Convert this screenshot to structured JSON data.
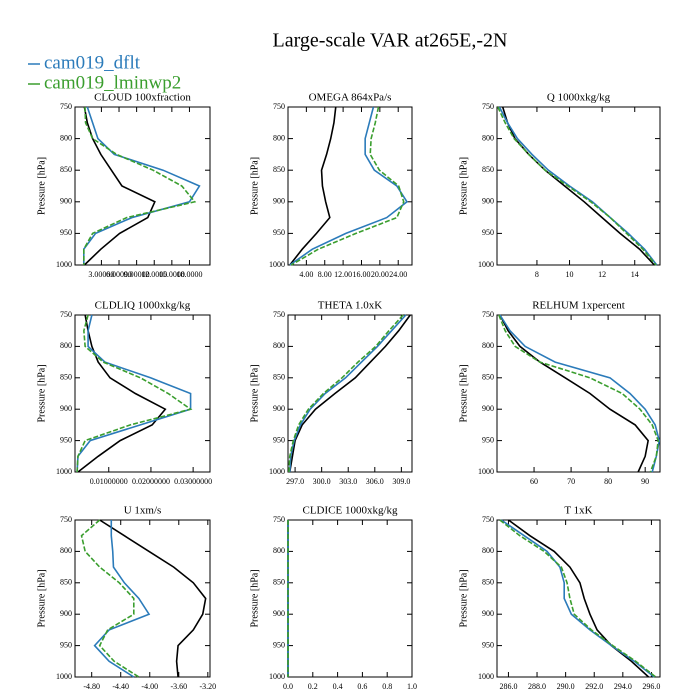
{
  "title": "Large-scale VAR at265E,-2N",
  "legend": [
    {
      "name": "cam019_dflt",
      "color": "#2b7bba"
    },
    {
      "name": "cam019_lminwp2",
      "color": "#3a9e2e"
    }
  ],
  "chart_data": [
    {
      "type": "line",
      "title": "CLOUD  100xfraction",
      "ylabel": "Pressure [hPa]",
      "y": [
        750,
        775,
        800,
        825,
        850,
        875,
        900,
        925,
        950,
        975,
        1000
      ],
      "ylim": [
        1000,
        750
      ],
      "yticks": [
        750,
        800,
        850,
        900,
        950,
        1000
      ],
      "xlim": [
        -1.5,
        21.5
      ],
      "xticks": [
        {
          "value": 3,
          "label": "3.00000"
        },
        {
          "value": 6,
          "label": "6.00000"
        },
        {
          "value": 9,
          "label": "9.00000"
        },
        {
          "value": 12,
          "label": "12.0000"
        },
        {
          "value": 15,
          "label": "15.0000"
        },
        {
          "value": 18,
          "label": "18.0000"
        }
      ],
      "series": [
        {
          "color": "#000000",
          "values": [
            0.1,
            0.6,
            1.5,
            2.9,
            4.7,
            6.5,
            12.1,
            10.9,
            6.1,
            2.9,
            0.1
          ]
        },
        {
          "color": "#2b7bba",
          "values": [
            0.6,
            1.5,
            2.4,
            5.2,
            13.5,
            19.7,
            18,
            8.2,
            2,
            0,
            0
          ]
        },
        {
          "color": "#3a9e2e",
          "dashed": true,
          "values": [
            0.2,
            0.3,
            1.5,
            5.6,
            11.8,
            16.7,
            18.9,
            7.3,
            1.5,
            0,
            0
          ]
        }
      ]
    },
    {
      "type": "line",
      "title": "OMEGA  864xPa/s",
      "ylabel": "Pressure [hPa]",
      "y": [
        750,
        775,
        800,
        825,
        850,
        875,
        900,
        925,
        950,
        975,
        1000
      ],
      "ylim": [
        1000,
        750
      ],
      "yticks": [
        750,
        800,
        850,
        900,
        950,
        1000
      ],
      "xlim": [
        0,
        27
      ],
      "xticks": [
        {
          "value": 4,
          "label": "4.00"
        },
        {
          "value": 8,
          "label": "8.00"
        },
        {
          "value": 12,
          "label": "12.00"
        },
        {
          "value": 16,
          "label": "16.00"
        },
        {
          "value": 20,
          "label": "20.00"
        },
        {
          "value": 24,
          "label": "24.00"
        }
      ],
      "series": [
        {
          "color": "#000000",
          "values": [
            10.4,
            10,
            9.3,
            8.4,
            7.3,
            7.5,
            8.2,
            9.1,
            6.2,
            3.1,
            0.4
          ]
        },
        {
          "color": "#2b7bba",
          "values": [
            18.6,
            17.7,
            16.8,
            16.8,
            18.8,
            23.7,
            25.9,
            21.5,
            12.6,
            5.3,
            0.4
          ]
        },
        {
          "color": "#3a9e2e",
          "dashed": true,
          "values": [
            19.7,
            19,
            18.1,
            17.9,
            19.9,
            24.1,
            25.2,
            23.7,
            14.8,
            6.6,
            0.7
          ]
        }
      ]
    },
    {
      "type": "line",
      "title": "Q  1000xkg/kg",
      "ylabel": "Pressure [hPa]",
      "y": [
        750,
        775,
        800,
        825,
        850,
        875,
        900,
        925,
        950,
        975,
        1000
      ],
      "ylim": [
        1000,
        750
      ],
      "yticks": [
        750,
        800,
        850,
        900,
        950,
        1000
      ],
      "xlim": [
        5.55,
        15.55
      ],
      "xticks": [
        8,
        10,
        12,
        14
      ],
      "series": [
        {
          "color": "#000000",
          "values": [
            5.9,
            6.2,
            6.65,
            7.5,
            8.5,
            9.7,
            10.9,
            12,
            13.1,
            14.3,
            15.2
          ]
        },
        {
          "color": "#2b7bba",
          "values": [
            5.7,
            6.2,
            6.8,
            7.7,
            8.7,
            10,
            11.4,
            12.5,
            13.6,
            14.6,
            15.35
          ]
        },
        {
          "color": "#3a9e2e",
          "dashed": true,
          "values": [
            5.6,
            6.05,
            6.6,
            7.5,
            8.5,
            9.9,
            11.3,
            12.5,
            13.5,
            14.5,
            15.3
          ]
        }
      ]
    },
    {
      "type": "line",
      "title": "CLDLIQ  1000xkg/kg",
      "ylabel": "Pressure [hPa]",
      "y": [
        750,
        775,
        800,
        825,
        850,
        875,
        900,
        925,
        950,
        975,
        1000
      ],
      "ylim": [
        1000,
        750
      ],
      "yticks": [
        750,
        800,
        850,
        900,
        950,
        1000
      ],
      "xlim": [
        0.002,
        0.034
      ],
      "xticks": [
        {
          "value": 0.01,
          "label": "0.01000000"
        },
        {
          "value": 0.02,
          "label": "0.02000000"
        },
        {
          "value": 0.03,
          "label": "0.03000000"
        }
      ],
      "series": [
        {
          "color": "#000000",
          "values": [
            0.0044,
            0.0051,
            0.006,
            0.0075,
            0.0103,
            0.0163,
            0.0234,
            0.0203,
            0.0127,
            0.0075,
            0.0027
          ]
        },
        {
          "color": "#2b7bba",
          "values": [
            0.006,
            0.0051,
            0.0051,
            0.0091,
            0.0199,
            0.0294,
            0.0294,
            0.0175,
            0.0056,
            0.0027,
            0.0025
          ]
        },
        {
          "color": "#3a9e2e",
          "dashed": true,
          "values": [
            0.0051,
            0.0041,
            0.0044,
            0.0087,
            0.0175,
            0.0241,
            0.0294,
            0.0151,
            0.0044,
            0.0027,
            0.0025
          ]
        }
      ]
    },
    {
      "type": "line",
      "title": "THETA  1.0xK",
      "ylabel": "Pressure [hPa]",
      "y": [
        750,
        775,
        800,
        825,
        850,
        875,
        900,
        925,
        950,
        975,
        1000
      ],
      "ylim": [
        1000,
        750
      ],
      "yticks": [
        750,
        800,
        850,
        900,
        950,
        1000
      ],
      "xlim": [
        296.2,
        310.2
      ],
      "xticks": [
        {
          "value": 297,
          "label": "297.0"
        },
        {
          "value": 300,
          "label": "300.0"
        },
        {
          "value": 303,
          "label": "303.0"
        },
        {
          "value": 306,
          "label": "306.0"
        },
        {
          "value": 309,
          "label": "309.0"
        }
      ],
      "series": [
        {
          "color": "#000000",
          "values": [
            310,
            308.7,
            307.2,
            305.5,
            303.8,
            301.5,
            299.3,
            297.8,
            297,
            296.7,
            296.4
          ]
        },
        {
          "color": "#2b7bba",
          "values": [
            309.5,
            307.9,
            306.3,
            304.5,
            302.7,
            300.4,
            298.7,
            297.6,
            296.9,
            296.5,
            296.4
          ]
        },
        {
          "color": "#3a9e2e",
          "dashed": true,
          "values": [
            309.2,
            307.6,
            306.1,
            304.1,
            302.3,
            300.2,
            298.5,
            297.4,
            296.8,
            296.4,
            296.3
          ]
        }
      ]
    },
    {
      "type": "line",
      "title": "RELHUM  1xpercent",
      "ylabel": "Pressure [hPa]",
      "y": [
        750,
        775,
        800,
        825,
        850,
        875,
        900,
        925,
        950,
        975,
        1000
      ],
      "ylim": [
        1000,
        750
      ],
      "yticks": [
        750,
        800,
        850,
        900,
        950,
        1000
      ],
      "xlim": [
        50,
        94
      ],
      "xticks": [
        60,
        70,
        80,
        90
      ],
      "series": [
        {
          "color": "#000000",
          "values": [
            50.8,
            53,
            56.2,
            61.6,
            68.4,
            75.1,
            80.5,
            87.3,
            90.8,
            90,
            88.1
          ]
        },
        {
          "color": "#2b7bba",
          "values": [
            50.8,
            53.5,
            57.6,
            65.7,
            80.5,
            85.9,
            90,
            92.7,
            93.8,
            93,
            91.9
          ]
        },
        {
          "color": "#3a9e2e",
          "dashed": true,
          "values": [
            50.5,
            52.2,
            54.9,
            61.6,
            75.1,
            83.8,
            88.6,
            91.9,
            93.5,
            93,
            91.4
          ]
        }
      ]
    },
    {
      "type": "line",
      "title": "U  1xm/s",
      "ylabel": "Pressure [hPa]",
      "y": [
        750,
        775,
        800,
        825,
        850,
        875,
        900,
        925,
        950,
        975,
        1000
      ],
      "ylim": [
        1000,
        750
      ],
      "yticks": [
        750,
        800,
        850,
        900,
        950,
        1000
      ],
      "xlim": [
        -5.03,
        -3.17
      ],
      "xticks": [
        {
          "value": -4.8,
          "label": "-4.80"
        },
        {
          "value": -4.4,
          "label": "-4.40"
        },
        {
          "value": -4,
          "label": "-4.00"
        },
        {
          "value": -3.6,
          "label": "-3.60"
        },
        {
          "value": -3.2,
          "label": "-3.20"
        }
      ],
      "series": [
        {
          "color": "#000000",
          "values": [
            -4.69,
            -4.35,
            -4.01,
            -3.67,
            -3.4,
            -3.23,
            -3.27,
            -3.4,
            -3.61,
            -3.63,
            -3.61
          ]
        },
        {
          "color": "#2b7bba",
          "values": [
            -4.53,
            -4.53,
            -4.51,
            -4.5,
            -4.35,
            -4.15,
            -4.01,
            -4.56,
            -4.76,
            -4.56,
            -4.22
          ]
        },
        {
          "color": "#3a9e2e",
          "dashed": true,
          "values": [
            -4.69,
            -4.94,
            -4.89,
            -4.69,
            -4.42,
            -4.22,
            -4.22,
            -4.58,
            -4.69,
            -4.49,
            -4.15
          ]
        }
      ]
    },
    {
      "type": "line",
      "title": "CLDICE  1000xkg/kg",
      "ylabel": "Pressure [hPa]",
      "y": [
        750,
        775,
        800,
        825,
        850,
        875,
        900,
        925,
        950,
        975,
        1000
      ],
      "ylim": [
        1000,
        750
      ],
      "yticks": [
        750,
        800,
        850,
        900,
        950,
        1000
      ],
      "xlim": [
        0,
        1
      ],
      "xticks": [
        {
          "value": 0,
          "label": "0.0"
        },
        {
          "value": 0.2,
          "label": "0.2"
        },
        {
          "value": 0.4,
          "label": "0.4"
        },
        {
          "value": 0.6,
          "label": "0.6"
        },
        {
          "value": 0.8,
          "label": "0.8"
        },
        {
          "value": 1,
          "label": "1.0"
        }
      ],
      "series": [
        {
          "color": "#000000",
          "values": [
            0,
            0,
            0,
            0,
            0,
            0,
            0,
            0,
            0,
            0,
            0
          ]
        },
        {
          "color": "#2b7bba",
          "values": [
            0,
            0,
            0,
            0,
            0,
            0,
            0,
            0,
            0,
            0,
            0
          ]
        },
        {
          "color": "#3a9e2e",
          "dashed": true,
          "values": [
            0,
            0,
            0,
            0,
            0,
            0,
            0,
            0,
            0,
            0,
            0
          ]
        }
      ]
    },
    {
      "type": "line",
      "title": "T  1xK",
      "ylabel": "Pressure [hPa]",
      "y": [
        750,
        775,
        800,
        825,
        850,
        875,
        900,
        925,
        950,
        975,
        1000
      ],
      "ylim": [
        1000,
        750
      ],
      "yticks": [
        750,
        800,
        850,
        900,
        950,
        1000
      ],
      "xlim": [
        285.2,
        296.6
      ],
      "xticks": [
        {
          "value": 286,
          "label": "286.0"
        },
        {
          "value": 288,
          "label": "288.0"
        },
        {
          "value": 290,
          "label": "290.0"
        },
        {
          "value": 292,
          "label": "292.0"
        },
        {
          "value": 294,
          "label": "294.0"
        },
        {
          "value": 296,
          "label": "296.0"
        }
      ],
      "series": [
        {
          "color": "#000000",
          "values": [
            286,
            287.5,
            289.2,
            290.3,
            291,
            291.3,
            291.7,
            292.2,
            293.2,
            294.6,
            295.8
          ]
        },
        {
          "color": "#2b7bba",
          "values": [
            285.5,
            287.1,
            288.7,
            289.6,
            289.9,
            289.9,
            290.4,
            291.7,
            293.2,
            294.8,
            296.2
          ]
        },
        {
          "color": "#3a9e2e",
          "dashed": true,
          "values": [
            285.4,
            286.8,
            288.5,
            289.7,
            290.1,
            290.3,
            290.6,
            291.8,
            293.3,
            294.9,
            296.3
          ]
        }
      ]
    }
  ]
}
